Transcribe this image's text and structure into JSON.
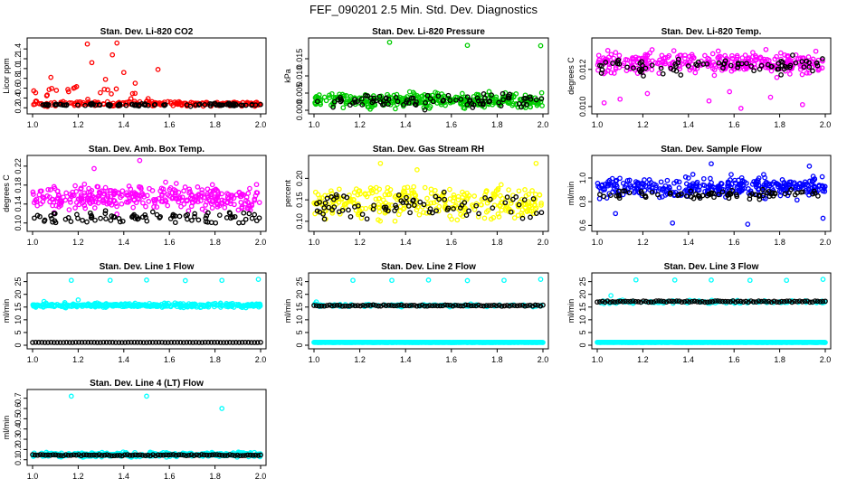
{
  "figure_title": "FEF_090201  2.5 Min. Std. Dev. Diagnostics",
  "colors": {
    "red": "#ff0000",
    "green": "#00cc00",
    "magenta": "#ff00ff",
    "yellow": "#ffff00",
    "blue": "#0000ff",
    "cyan": "#00ffff",
    "black": "#000000"
  },
  "chart_data": [
    {
      "id": "p1",
      "type": "scatter",
      "title": "Stan. Dev. Li-820 CO2",
      "ylabel": "Licor ppm",
      "xlim": [
        1.0,
        2.0
      ],
      "ylim": [
        0.15,
        1.55
      ],
      "xticks": [
        "1.0",
        "1.2",
        "1.4",
        "1.6",
        "1.8",
        "2.0"
      ],
      "yticks": [
        "0.2",
        "0.4",
        "0.6",
        "0.8",
        "1.0",
        "1.2",
        "1.4"
      ],
      "series": [
        {
          "color": "#ff0000",
          "x_range": [
            1.0,
            2.0
          ],
          "y_base": [
            0.22,
            0.35
          ],
          "count": 230,
          "n_cluster_end": 1.6,
          "outliers": [
            [
              1.24,
              1.5
            ],
            [
              1.37,
              1.52
            ],
            [
              1.35,
              1.28
            ],
            [
              1.26,
              1.12
            ],
            [
              1.55,
              0.98
            ],
            [
              1.4,
              0.92
            ],
            [
              1.08,
              0.82
            ],
            [
              1.32,
              0.78
            ],
            [
              1.45,
              0.7
            ],
            [
              1.18,
              0.6
            ]
          ]
        },
        {
          "color": "#000000",
          "x_range": [
            1.0,
            2.0
          ],
          "y_base": [
            0.22,
            0.3
          ],
          "count": 90
        }
      ]
    },
    {
      "id": "p2",
      "type": "scatter",
      "title": "Stan. Dev. Li-820 Pressure",
      "ylabel": "kPa",
      "xlim": [
        1.0,
        2.0
      ],
      "ylim": [
        0.0,
        0.02
      ],
      "xticks": [
        "1.0",
        "1.2",
        "1.4",
        "1.6",
        "1.8",
        "2.0"
      ],
      "yticks": [
        "0.000",
        "0.005",
        "0.010",
        "0.015"
      ],
      "series": [
        {
          "color": "#00cc00",
          "x_range": [
            1.0,
            2.0
          ],
          "y_base": [
            0.0,
            0.0058
          ],
          "count": 360,
          "outliers": [
            [
              1.33,
              0.0198
            ],
            [
              1.67,
              0.0189
            ],
            [
              1.99,
              0.0188
            ]
          ]
        },
        {
          "color": "#000000",
          "x_range": [
            1.0,
            2.0
          ],
          "y_base": [
            0.0,
            0.0052
          ],
          "count": 90
        }
      ]
    },
    {
      "id": "p3",
      "type": "scatter",
      "title": "Stan. Dev. Li-820 Temp.",
      "ylabel": "degrees C",
      "xlim": [
        1.0,
        2.0
      ],
      "ylim": [
        0.0098,
        0.0135
      ],
      "xticks": [
        "1.0",
        "1.2",
        "1.4",
        "1.6",
        "1.8",
        "2.0"
      ],
      "yticks": [
        "0.010",
        "0.012"
      ],
      "series": [
        {
          "color": "#ff00ff",
          "x_range": [
            1.0,
            2.0
          ],
          "y_base": [
            0.0115,
            0.0132
          ],
          "count": 320,
          "outliers": [
            [
              1.03,
              0.0102
            ],
            [
              1.1,
              0.0104
            ],
            [
              1.22,
              0.0107
            ],
            [
              1.49,
              0.0103
            ],
            [
              1.63,
              0.0099
            ],
            [
              1.76,
              0.0105
            ],
            [
              1.9,
              0.0101
            ],
            [
              1.58,
              0.0108
            ]
          ]
        },
        {
          "color": "#000000",
          "x_range": [
            1.0,
            2.0
          ],
          "y_base": [
            0.0115,
            0.0129
          ],
          "count": 80
        }
      ]
    },
    {
      "id": "p4",
      "type": "scatter",
      "title": "Stan. Dev. Amb. Box Temp.",
      "ylabel": "degrees C",
      "xlim": [
        1.0,
        2.0
      ],
      "ylim": [
        0.09,
        0.235
      ],
      "xticks": [
        "1.0",
        "1.2",
        "1.4",
        "1.6",
        "1.8",
        "2.0"
      ],
      "yticks": [
        "0.10",
        "0.14",
        "0.18",
        "0.22"
      ],
      "series": [
        {
          "color": "#ff00ff",
          "x_range": [
            1.0,
            2.0
          ],
          "y_base": [
            0.115,
            0.19
          ],
          "count": 330,
          "outliers": [
            [
              1.47,
              0.232
            ],
            [
              1.27,
              0.215
            ]
          ]
        },
        {
          "color": "#000000",
          "x_range": [
            1.0,
            2.0
          ],
          "y_base": [
            0.095,
            0.13
          ],
          "count": 90
        }
      ]
    },
    {
      "id": "p5",
      "type": "scatter",
      "title": "Stan. Dev. Gas Stream RH",
      "ylabel": "percent",
      "xlim": [
        1.0,
        2.0
      ],
      "ylim": [
        0.085,
        0.245
      ],
      "xticks": [
        "1.0",
        "1.2",
        "1.4",
        "1.6",
        "1.8",
        "2.0"
      ],
      "yticks": [
        "0.10",
        "0.15",
        "0.20"
      ],
      "series": [
        {
          "color": "#ffff00",
          "x_range": [
            1.0,
            2.0
          ],
          "y_base": [
            0.09,
            0.2
          ],
          "count": 320,
          "outliers": [
            [
              1.29,
              0.235
            ],
            [
              1.97,
              0.235
            ],
            [
              1.45,
              0.22
            ]
          ]
        },
        {
          "color": "#000000",
          "x_range": [
            1.0,
            2.0
          ],
          "y_base": [
            0.095,
            0.18
          ],
          "count": 80
        }
      ]
    },
    {
      "id": "p6",
      "type": "scatter",
      "title": "Stan. Dev. Sample Flow",
      "ylabel": "ml/min",
      "xlim": [
        1.0,
        2.0
      ],
      "ylim": [
        0.58,
        1.16
      ],
      "xticks": [
        "1.0",
        "1.2",
        "1.4",
        "1.6",
        "1.8",
        "2.0"
      ],
      "yticks": [
        "0.6",
        "0.8",
        "1.0"
      ],
      "series": [
        {
          "color": "#0000ff",
          "x_range": [
            1.0,
            2.0
          ],
          "y_base": [
            0.8,
            1.05
          ],
          "count": 330,
          "outliers": [
            [
              1.33,
              0.62
            ],
            [
              1.66,
              0.61
            ],
            [
              1.99,
              0.66
            ],
            [
              1.5,
              1.12
            ],
            [
              1.93,
              1.1
            ],
            [
              1.08,
              0.7
            ]
          ]
        },
        {
          "color": "#000000",
          "x_range": [
            1.0,
            2.0
          ],
          "y_base": [
            0.8,
            0.92
          ],
          "count": 80
        }
      ]
    },
    {
      "id": "p7",
      "type": "scatter",
      "title": "Stan. Dev. Line 1 Flow",
      "ylabel": "ml/min",
      "xlim": [
        1.0,
        2.0
      ],
      "ylim": [
        0,
        27
      ],
      "xticks": [
        "1.0",
        "1.2",
        "1.4",
        "1.6",
        "1.8",
        "2.0"
      ],
      "yticks": [
        "0",
        "5",
        "10",
        "15",
        "20",
        "25"
      ],
      "series": [
        {
          "color": "#00ffff",
          "x_range": [
            1.0,
            2.0
          ],
          "y_base": [
            14.5,
            16.8
          ],
          "count": 340,
          "outliers": [
            [
              1.17,
              25.5
            ],
            [
              1.34,
              25.5
            ],
            [
              1.5,
              25.6
            ],
            [
              1.67,
              25.4
            ],
            [
              1.83,
              25.5
            ],
            [
              1.99,
              25.9
            ],
            [
              1.2,
              17.8
            ],
            [
              1.05,
              17.2
            ]
          ]
        },
        {
          "color": "#000000",
          "x_range": [
            1.0,
            2.0
          ],
          "y_base": [
            1.0,
            1.2
          ],
          "count": 75,
          "line": true
        }
      ]
    },
    {
      "id": "p8",
      "type": "scatter",
      "title": "Stan. Dev. Line 2 Flow",
      "ylabel": "ml/min",
      "xlim": [
        1.0,
        2.0
      ],
      "ylim": [
        0,
        27
      ],
      "xticks": [
        "1.0",
        "1.2",
        "1.4",
        "1.6",
        "1.8",
        "2.0"
      ],
      "yticks": [
        "0",
        "5",
        "10",
        "15",
        "20",
        "25"
      ],
      "series": [
        {
          "color": "#00ffff",
          "x_range": [
            1.0,
            2.0
          ],
          "y_base": [
            1.0,
            1.2
          ],
          "count": 300,
          "line": true
        },
        {
          "color": "#00ffff",
          "x_range": [
            1.0,
            2.0
          ],
          "y_base": [
            14.8,
            16.5
          ],
          "count": 90,
          "outliers": [
            [
              1.17,
              25.5
            ],
            [
              1.34,
              25.5
            ],
            [
              1.5,
              25.6
            ],
            [
              1.67,
              25.4
            ],
            [
              1.83,
              25.5
            ],
            [
              1.99,
              25.9
            ],
            [
              1.01,
              17.0
            ]
          ]
        },
        {
          "color": "#000000",
          "x_range": [
            1.0,
            2.0
          ],
          "y_base": [
            15.0,
            16.2
          ],
          "count": 90,
          "line": true
        }
      ]
    },
    {
      "id": "p9",
      "type": "scatter",
      "title": "Stan. Dev. Line 3 Flow",
      "ylabel": "ml/min",
      "xlim": [
        1.0,
        2.0
      ],
      "ylim": [
        0,
        27
      ],
      "xticks": [
        "1.0",
        "1.2",
        "1.4",
        "1.6",
        "1.8",
        "2.0"
      ],
      "yticks": [
        "0",
        "5",
        "10",
        "15",
        "20",
        "25"
      ],
      "series": [
        {
          "color": "#00ffff",
          "x_range": [
            1.0,
            2.0
          ],
          "y_base": [
            1.0,
            1.2
          ],
          "count": 300,
          "line": true
        },
        {
          "color": "#00ffff",
          "x_range": [
            1.0,
            2.0
          ],
          "y_base": [
            16.2,
            17.8
          ],
          "count": 100,
          "outliers": [
            [
              1.06,
              19.5
            ],
            [
              1.17,
              25.7
            ],
            [
              1.34,
              25.6
            ],
            [
              1.5,
              25.6
            ],
            [
              1.67,
              25.5
            ],
            [
              1.83,
              25.5
            ],
            [
              1.99,
              25.9
            ]
          ]
        },
        {
          "color": "#000000",
          "x_range": [
            1.0,
            2.0
          ],
          "y_base": [
            16.5,
            17.8
          ],
          "count": 90,
          "line": true
        }
      ]
    },
    {
      "id": "p10",
      "type": "scatter",
      "title": "Stan. Dev. Line 4 (LT) Flow",
      "ylabel": "ml/min",
      "xlim": [
        1.0,
        2.0
      ],
      "ylim": [
        0.08,
        0.75
      ],
      "xticks": [
        "1.0",
        "1.2",
        "1.4",
        "1.6",
        "1.8",
        "2.0"
      ],
      "yticks": [
        "0.1",
        "0.2",
        "0.3",
        "0.4",
        "0.5",
        "0.6",
        "0.7"
      ],
      "series": [
        {
          "color": "#00ffff",
          "x_range": [
            1.0,
            2.0
          ],
          "y_base": [
            0.12,
            0.18
          ],
          "count": 330,
          "outliers": [
            [
              1.17,
              0.72
            ],
            [
              1.5,
              0.72
            ],
            [
              1.83,
              0.6
            ]
          ]
        },
        {
          "color": "#000000",
          "x_range": [
            1.0,
            2.0
          ],
          "y_base": [
            0.13,
            0.16
          ],
          "count": 90,
          "line": true
        }
      ]
    }
  ]
}
